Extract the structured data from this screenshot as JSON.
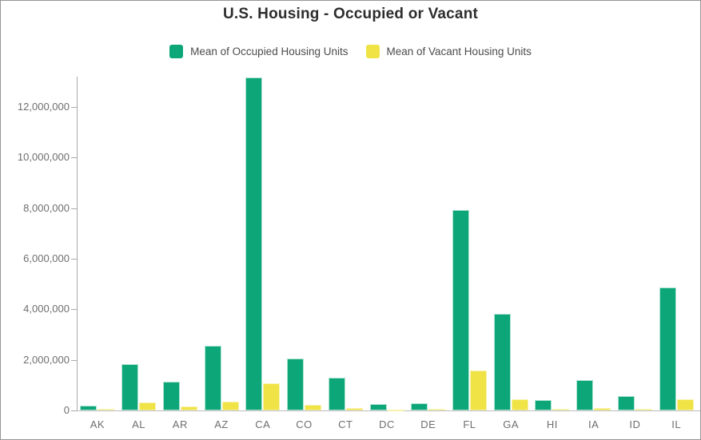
{
  "chart_data": {
    "type": "bar",
    "title": "U.S. Housing - Occupied or Vacant",
    "categories": [
      "AK",
      "AL",
      "AR",
      "AZ",
      "CA",
      "CO",
      "CT",
      "DC",
      "DE",
      "FL",
      "GA",
      "HI",
      "IA",
      "ID",
      "IL"
    ],
    "series": [
      {
        "name": "Mean of Occupied Housing Units",
        "color": "#0CA678",
        "stroke_color": "#aee2d0",
        "values": [
          200000,
          1840000,
          1130000,
          2570000,
          13170000,
          2060000,
          1310000,
          240000,
          300000,
          7930000,
          3810000,
          410000,
          1200000,
          570000,
          4850000
        ]
      },
      {
        "name": "Mean of Vacant Housing Units",
        "color": "#EFE345",
        "stroke_color": "#f7f2ad",
        "values": [
          60000,
          320000,
          160000,
          340000,
          1060000,
          220000,
          80000,
          30000,
          50000,
          1570000,
          430000,
          50000,
          100000,
          70000,
          450000
        ]
      }
    ],
    "xlabel": "",
    "ylabel": "",
    "y_ticks": [
      {
        "value": 0,
        "label": "0"
      },
      {
        "value": 2000000,
        "label": "2,000,000"
      },
      {
        "value": 4000000,
        "label": "4,000,000"
      },
      {
        "value": 6000000,
        "label": "6,000,000"
      },
      {
        "value": 8000000,
        "label": "8,000,000"
      },
      {
        "value": 10000000,
        "label": "10,000,000"
      },
      {
        "value": 12000000,
        "label": "12,000,000"
      }
    ],
    "ylim": [
      0,
      13200000
    ],
    "grid": false,
    "legend_position": "top",
    "axis_colors": {
      "line": "#a9a9a9",
      "baseline": "#bdbdbd",
      "tick_text": "#6e6e6e"
    },
    "title_color": "#2d2d2d",
    "legend_text_color": "#4c4c4c"
  }
}
